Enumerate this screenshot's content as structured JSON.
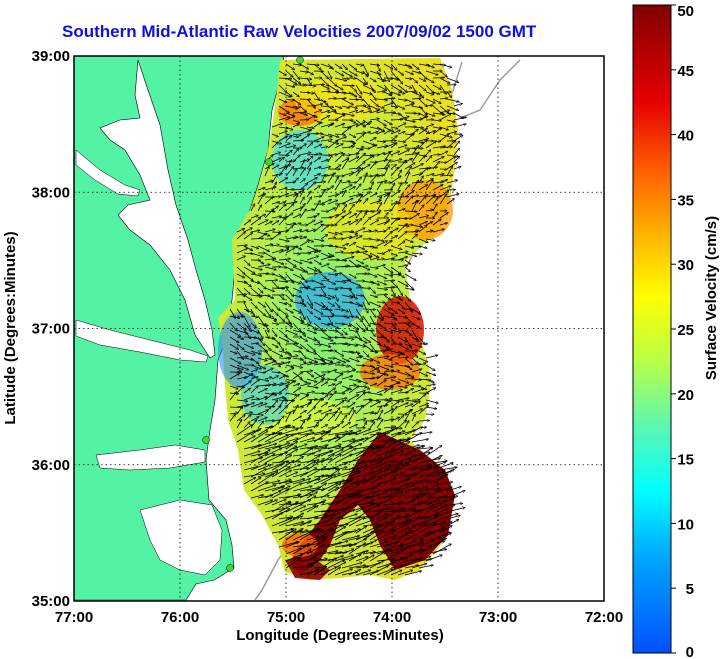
{
  "title": "Southern Mid-Atlantic Raw Velocities 2007/09/02 1500 GMT",
  "x_axis": {
    "label": "Longitude (Degrees:Minutes)",
    "ticks": [
      "77:00",
      "76:00",
      "75:00",
      "74:00",
      "73:00",
      "72:00"
    ]
  },
  "y_axis": {
    "label": "Latitude (Degrees:Minutes)",
    "ticks": [
      "39:00",
      "38:00",
      "37:00",
      "36:00",
      "35:00"
    ]
  },
  "colorbar": {
    "label": "Surface Velocity (cm/s)",
    "ticks": [
      "50",
      "45",
      "40",
      "35",
      "30",
      "25",
      "20",
      "15",
      "10",
      "5",
      "0"
    ],
    "min": 0,
    "max": 50,
    "colormap": [
      "#0000ff",
      "#00a0ff",
      "#00ffff",
      "#80ff80",
      "#ffff00",
      "#ffa000",
      "#ff0000",
      "#800000"
    ]
  },
  "colors": {
    "land": "#54f2a4",
    "water": "#ffffff",
    "radar_site": "#33dd33",
    "grid": "#000000",
    "bathymetry": "#999999"
  }
}
